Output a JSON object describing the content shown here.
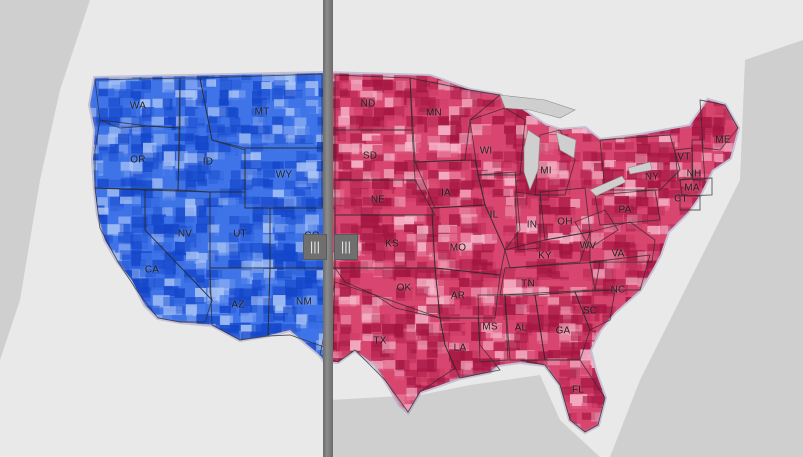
{
  "map": {
    "colors": {
      "land": "#e9e9e9",
      "water": "#cfcfcf",
      "left_fill": "#3f74e8",
      "left_dark": "#1446c9",
      "left_light": "#a9c4f5",
      "right_fill": "#d8466f",
      "right_dark": "#a41642",
      "right_light": "#f6b8cc",
      "border": "#2b2b2b"
    },
    "state_labels": [
      {
        "id": "WA",
        "text": "WA"
      },
      {
        "id": "OR",
        "text": "OR"
      },
      {
        "id": "CA",
        "text": "CA"
      },
      {
        "id": "ID",
        "text": "ID"
      },
      {
        "id": "NV",
        "text": "NV"
      },
      {
        "id": "MT",
        "text": "MT"
      },
      {
        "id": "WY",
        "text": "WY"
      },
      {
        "id": "UT",
        "text": "UT"
      },
      {
        "id": "AZ",
        "text": "AZ"
      },
      {
        "id": "CO",
        "text": "CO"
      },
      {
        "id": "NM",
        "text": "NM"
      },
      {
        "id": "ND",
        "text": "ND"
      },
      {
        "id": "SD",
        "text": "SD"
      },
      {
        "id": "NE",
        "text": "NE"
      },
      {
        "id": "KS",
        "text": "KS"
      },
      {
        "id": "OK",
        "text": "OK"
      },
      {
        "id": "TX",
        "text": "TX"
      },
      {
        "id": "MN",
        "text": "MN"
      },
      {
        "id": "IA",
        "text": "IA"
      },
      {
        "id": "MO",
        "text": "MO"
      },
      {
        "id": "AR",
        "text": "AR"
      },
      {
        "id": "LA",
        "text": "LA"
      },
      {
        "id": "WI",
        "text": "WI"
      },
      {
        "id": "IL",
        "text": "IL"
      },
      {
        "id": "MI",
        "text": "MI"
      },
      {
        "id": "IN",
        "text": "IN"
      },
      {
        "id": "OH",
        "text": "OH"
      },
      {
        "id": "KY",
        "text": "KY"
      },
      {
        "id": "TN",
        "text": "TN"
      },
      {
        "id": "MS",
        "text": "MS"
      },
      {
        "id": "AL",
        "text": "AL"
      },
      {
        "id": "GA",
        "text": "GA"
      },
      {
        "id": "FL",
        "text": "FL"
      },
      {
        "id": "SC",
        "text": "SC"
      },
      {
        "id": "NC",
        "text": "NC"
      },
      {
        "id": "VA",
        "text": "VA"
      },
      {
        "id": "WV",
        "text": "WV"
      },
      {
        "id": "PA",
        "text": "PA"
      },
      {
        "id": "NY",
        "text": "NY"
      },
      {
        "id": "VT",
        "text": "VT"
      },
      {
        "id": "NH",
        "text": "NH"
      },
      {
        "id": "ME",
        "text": "ME"
      },
      {
        "id": "MA",
        "text": "MA"
      },
      {
        "id": "CT",
        "text": "CT"
      }
    ],
    "swipe_handle_glyph": "|||"
  }
}
